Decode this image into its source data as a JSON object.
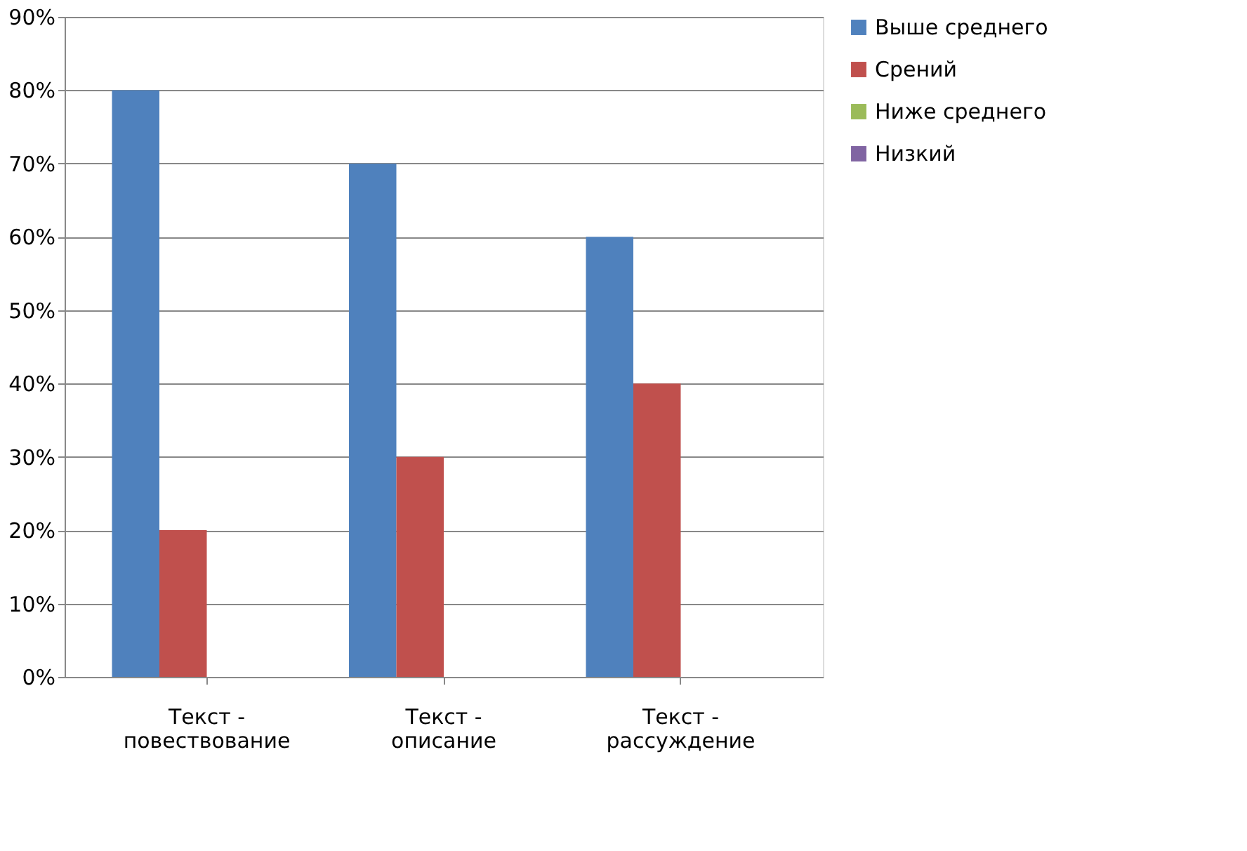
{
  "chart_data": {
    "type": "bar",
    "categories": [
      "Текст -\nповествование",
      "Текст -\nописание",
      "Текст -\nрассуждение"
    ],
    "series": [
      {
        "name": "Выше среднего",
        "color": "#4f81bd",
        "values": [
          80,
          70,
          60
        ]
      },
      {
        "name": "Срений",
        "color": "#c0504d",
        "values": [
          20,
          30,
          40
        ]
      },
      {
        "name": "Ниже среднего",
        "color": "#9bbb59",
        "values": [
          0,
          0,
          0
        ]
      },
      {
        "name": "Низкий",
        "color": "#8064a2",
        "values": [
          0,
          0,
          0
        ]
      }
    ],
    "ylim": [
      0,
      90
    ],
    "yticks": [
      {
        "value": 0,
        "label": "0%"
      },
      {
        "value": 10,
        "label": "10%"
      },
      {
        "value": 20,
        "label": "20%"
      },
      {
        "value": 30,
        "label": "30%"
      },
      {
        "value": 40,
        "label": "40%"
      },
      {
        "value": 50,
        "label": "50%"
      },
      {
        "value": 60,
        "label": "60%"
      },
      {
        "value": 70,
        "label": "70%"
      },
      {
        "value": 80,
        "label": "80%"
      },
      {
        "value": 90,
        "label": "90%"
      }
    ],
    "grid": "y",
    "legend": "right"
  }
}
